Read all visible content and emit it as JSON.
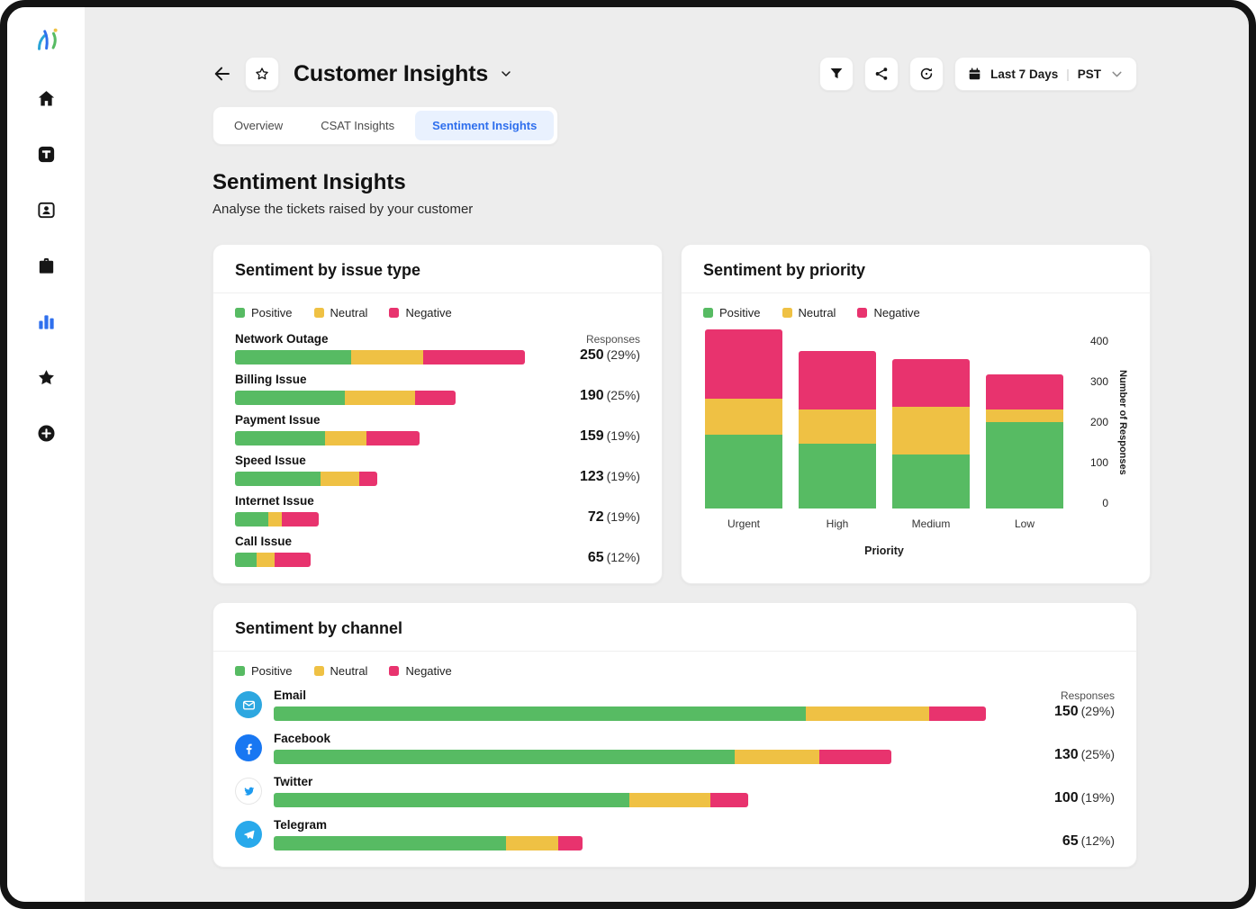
{
  "colors": {
    "positive": "#57bb63",
    "neutral": "#efc144",
    "negative": "#e8336e",
    "accent": "#2f6fed"
  },
  "channel_colors": {
    "email": "#2da7e0",
    "facebook": "#1877f2",
    "twitter": "#1d9bf0",
    "telegram": "#29a9eb"
  },
  "sidebar": {
    "icons": [
      "logo",
      "home",
      "tickets",
      "contacts",
      "cases",
      "analytics",
      "favorites",
      "create"
    ]
  },
  "header": {
    "title": "Customer Insights",
    "date_range": "Last 7 Days",
    "divider": "|",
    "timezone": "PST"
  },
  "tabs": [
    {
      "label": "Overview",
      "active": false
    },
    {
      "label": "CSAT Insights",
      "active": false
    },
    {
      "label": "Sentiment Insights",
      "active": true
    }
  ],
  "page": {
    "title": "Sentiment Insights",
    "subtitle": "Analyse the tickets raised by your customer"
  },
  "legend": {
    "positive": "Positive",
    "neutral": "Neutral",
    "negative": "Negative"
  },
  "charts": {
    "issue": {
      "type": "stacked-bar-horizontal",
      "title": "Sentiment by issue type",
      "responses_header": "Responses",
      "max": 250,
      "rows": [
        {
          "label": "Network Outage",
          "value": "250",
          "pct": "(29%)",
          "positive": 100,
          "neutral": 62,
          "negative": 88
        },
        {
          "label": "Billing Issue",
          "value": "190",
          "pct": "(25%)",
          "positive": 95,
          "neutral": 60,
          "negative": 35
        },
        {
          "label": "Payment Issue",
          "value": "159",
          "pct": "(19%)",
          "positive": 78,
          "neutral": 35,
          "negative": 46
        },
        {
          "label": "Speed Issue",
          "value": "123",
          "pct": "(19%)",
          "positive": 74,
          "neutral": 33,
          "negative": 16
        },
        {
          "label": "Internet Issue",
          "value": "72",
          "pct": "(19%)",
          "positive": 29,
          "neutral": 11,
          "negative": 32
        },
        {
          "label": "Call Issue",
          "value": "65",
          "pct": "(12%)",
          "positive": 19,
          "neutral": 15,
          "negative": 31
        }
      ]
    },
    "priority": {
      "type": "stacked-bar-vertical",
      "title": "Sentiment by priority",
      "xlabel": "Priority",
      "ylabel": "Number of Responses",
      "ymax": 400,
      "yticks": [
        "400",
        "300",
        "200",
        "100",
        "0"
      ],
      "bars": [
        {
          "label": "Urgent",
          "positive": 170,
          "neutral": 85,
          "negative": 160
        },
        {
          "label": "High",
          "positive": 150,
          "neutral": 80,
          "negative": 135
        },
        {
          "label": "Medium",
          "positive": 125,
          "neutral": 110,
          "negative": 110
        },
        {
          "label": "Low",
          "positive": 200,
          "neutral": 30,
          "negative": 80
        }
      ]
    },
    "channel": {
      "type": "stacked-bar-horizontal",
      "title": "Sentiment by channel",
      "responses_header": "Responses",
      "max": 150,
      "rows": [
        {
          "label": "Email",
          "icon": "email",
          "value": "150",
          "pct": "(29%)",
          "positive": 112,
          "neutral": 26,
          "negative": 12
        },
        {
          "label": "Facebook",
          "icon": "facebook",
          "value": "130",
          "pct": "(25%)",
          "positive": 97,
          "neutral": 18,
          "negative": 15
        },
        {
          "label": "Twitter",
          "icon": "twitter",
          "value": "100",
          "pct": "(19%)",
          "positive": 75,
          "neutral": 17,
          "negative": 8
        },
        {
          "label": "Telegram",
          "icon": "telegram",
          "value": "65",
          "pct": "(12%)",
          "positive": 49,
          "neutral": 11,
          "negative": 5
        }
      ]
    }
  }
}
